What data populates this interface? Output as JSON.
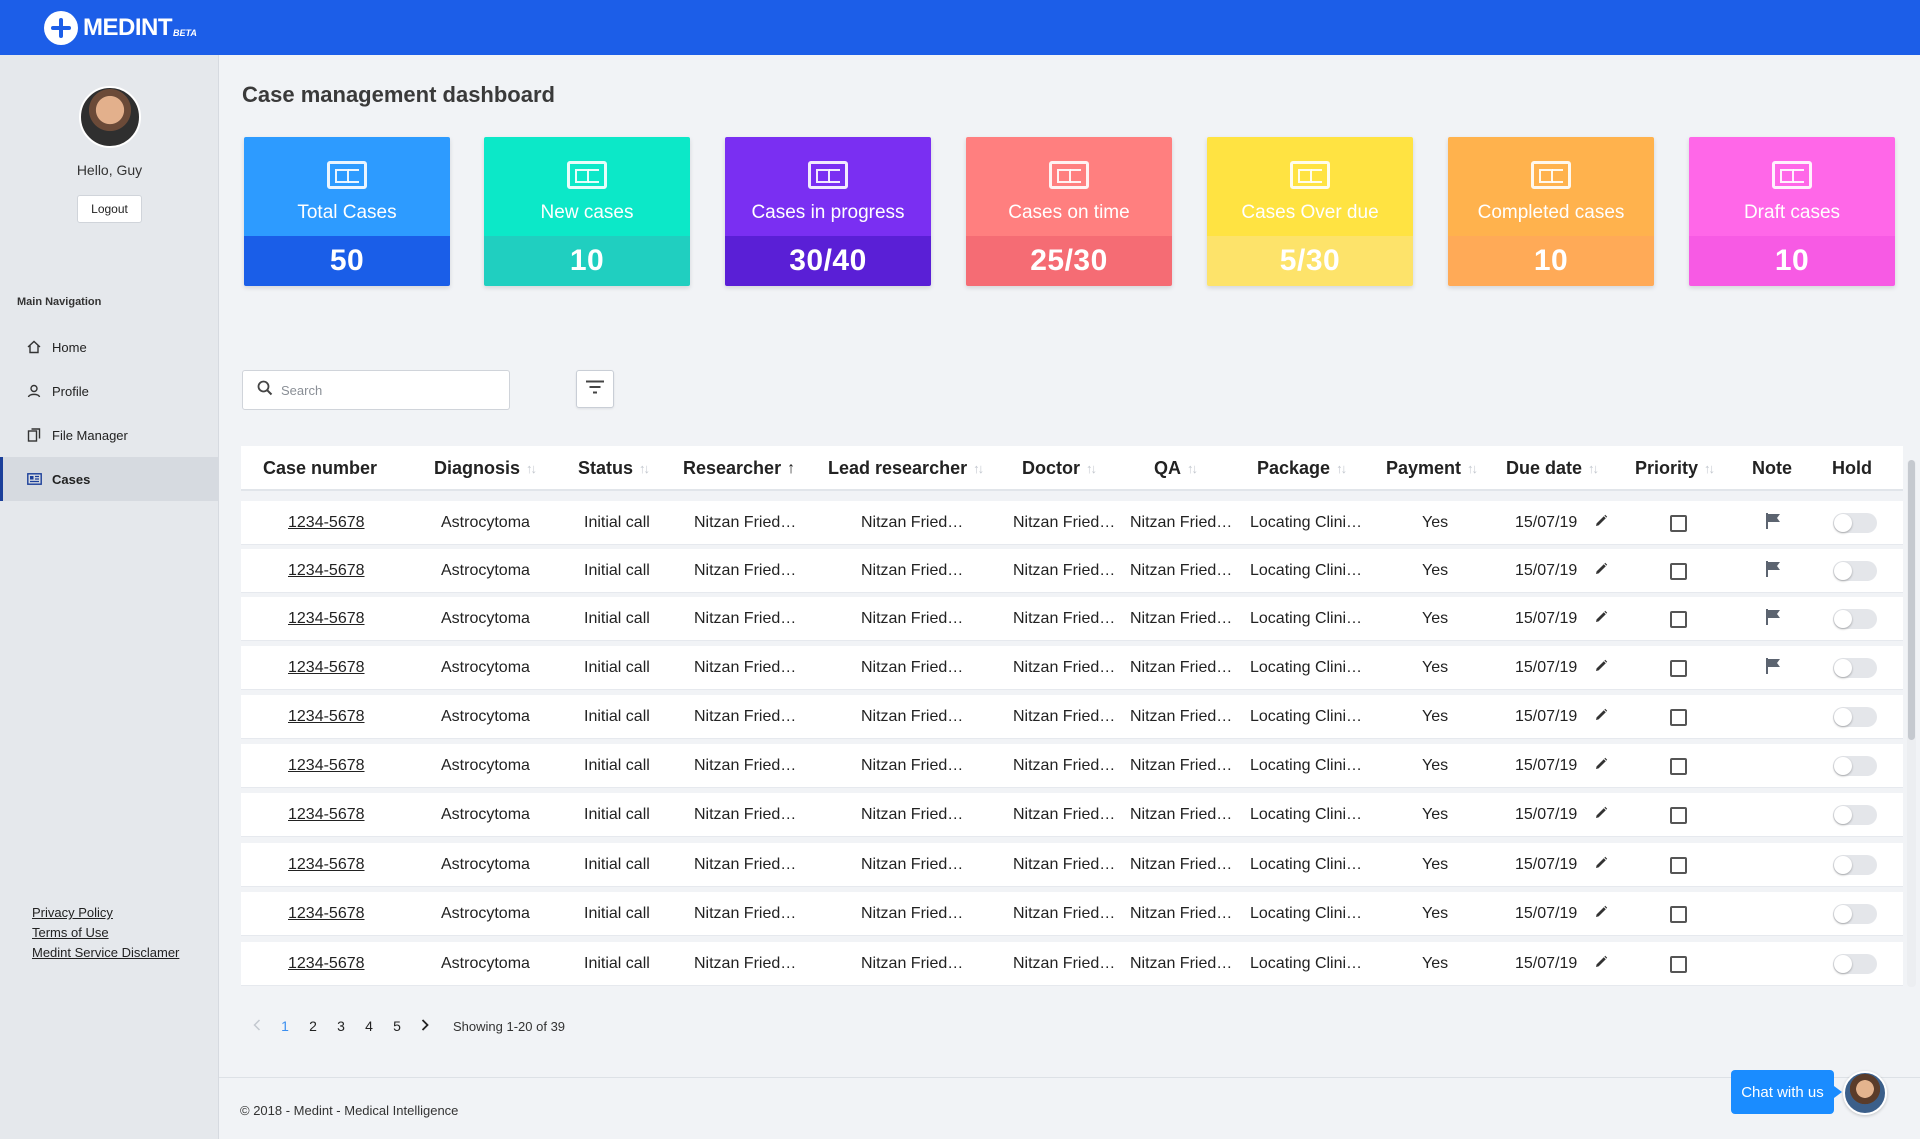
{
  "app": {
    "logo_text": "MEDINT",
    "logo_badge": "BETA"
  },
  "sidebar": {
    "greeting": "Hello, Guy",
    "logout_label": "Logout",
    "nav_title": "Main Navigation",
    "items": [
      {
        "label": "Home",
        "icon": "home-icon"
      },
      {
        "label": "Profile",
        "icon": "user-icon"
      },
      {
        "label": "File Manager",
        "icon": "files-icon"
      },
      {
        "label": "Cases",
        "icon": "cases-icon",
        "active": true
      }
    ],
    "footer_links": [
      "Privacy Policy",
      "Terms of Use",
      "Medint Service Disclamer"
    ]
  },
  "page": {
    "title": "Case management dashboard"
  },
  "cards": [
    {
      "label": "Total Cases",
      "value": "50",
      "top": "#2d9bff",
      "bottom": "#1a5ee8"
    },
    {
      "label": "New cases",
      "value": "10",
      "top": "#0ce8c8",
      "bottom": "#20cfc0"
    },
    {
      "label": "Cases in progress",
      "value": "30/40",
      "top": "#7a2ff2",
      "bottom": "#5a1fd6"
    },
    {
      "label": "Cases on time",
      "value": "25/30",
      "top": "#ff7f7f",
      "bottom": "#f56c74"
    },
    {
      "label": "Cases Over due",
      "value": "5/30",
      "top": "#ffe342",
      "bottom": "#fde36a"
    },
    {
      "label": "Completed cases",
      "value": "10",
      "top": "#ffb24d",
      "bottom": "#ffaa57"
    },
    {
      "label": "Draft cases",
      "value": "10",
      "top": "#ff67e8",
      "bottom": "#f75ae4"
    }
  ],
  "search": {
    "placeholder": "Search"
  },
  "table": {
    "columns": [
      "Case number",
      "Diagnosis",
      "Status",
      "Researcher",
      "Lead researcher",
      "Doctor",
      "QA",
      "Package",
      "Payment",
      "Due date",
      "Priority",
      "Note",
      "Hold"
    ],
    "rows": [
      {
        "case": "1234-5678",
        "diagnosis": "Astrocytoma",
        "status": "Initial call",
        "researcher": "Nitzan Fried…",
        "lead": "Nitzan Fried…",
        "doctor": "Nitzan Fried…",
        "qa": "Nitzan Fried…",
        "package": "Locating Clini…",
        "payment": "Yes",
        "due": "15/07/19",
        "note": true
      },
      {
        "case": "1234-5678",
        "diagnosis": "Astrocytoma",
        "status": "Initial call",
        "researcher": "Nitzan Fried…",
        "lead": "Nitzan Fried…",
        "doctor": "Nitzan Fried…",
        "qa": "Nitzan Fried…",
        "package": "Locating Clini…",
        "payment": "Yes",
        "due": "15/07/19",
        "note": true
      },
      {
        "case": "1234-5678",
        "diagnosis": "Astrocytoma",
        "status": "Initial call",
        "researcher": "Nitzan Fried…",
        "lead": "Nitzan Fried…",
        "doctor": "Nitzan Fried…",
        "qa": "Nitzan Fried…",
        "package": "Locating Clini…",
        "payment": "Yes",
        "due": "15/07/19",
        "note": true
      },
      {
        "case": "1234-5678",
        "diagnosis": "Astrocytoma",
        "status": "Initial call",
        "researcher": "Nitzan Fried…",
        "lead": "Nitzan Fried…",
        "doctor": "Nitzan Fried…",
        "qa": "Nitzan Fried…",
        "package": "Locating Clini…",
        "payment": "Yes",
        "due": "15/07/19",
        "note": true
      },
      {
        "case": "1234-5678",
        "diagnosis": "Astrocytoma",
        "status": "Initial call",
        "researcher": "Nitzan Fried…",
        "lead": "Nitzan Fried…",
        "doctor": "Nitzan Fried…",
        "qa": "Nitzan Fried…",
        "package": "Locating Clini…",
        "payment": "Yes",
        "due": "15/07/19",
        "note": false
      },
      {
        "case": "1234-5678",
        "diagnosis": "Astrocytoma",
        "status": "Initial call",
        "researcher": "Nitzan Fried…",
        "lead": "Nitzan Fried…",
        "doctor": "Nitzan Fried…",
        "qa": "Nitzan Fried…",
        "package": "Locating Clini…",
        "payment": "Yes",
        "due": "15/07/19",
        "note": false
      },
      {
        "case": "1234-5678",
        "diagnosis": "Astrocytoma",
        "status": "Initial call",
        "researcher": "Nitzan Fried…",
        "lead": "Nitzan Fried…",
        "doctor": "Nitzan Fried…",
        "qa": "Nitzan Fried…",
        "package": "Locating Clini…",
        "payment": "Yes",
        "due": "15/07/19",
        "note": false
      },
      {
        "case": "1234-5678",
        "diagnosis": "Astrocytoma",
        "status": "Initial call",
        "researcher": "Nitzan Fried…",
        "lead": "Nitzan Fried…",
        "doctor": "Nitzan Fried…",
        "qa": "Nitzan Fried…",
        "package": "Locating Clini…",
        "payment": "Yes",
        "due": "15/07/19",
        "note": false
      },
      {
        "case": "1234-5678",
        "diagnosis": "Astrocytoma",
        "status": "Initial call",
        "researcher": "Nitzan Fried…",
        "lead": "Nitzan Fried…",
        "doctor": "Nitzan Fried…",
        "qa": "Nitzan Fried…",
        "package": "Locating Clini…",
        "payment": "Yes",
        "due": "15/07/19",
        "note": false
      },
      {
        "case": "1234-5678",
        "diagnosis": "Astrocytoma",
        "status": "Initial call",
        "researcher": "Nitzan Fried…",
        "lead": "Nitzan Fried…",
        "doctor": "Nitzan Fried…",
        "qa": "Nitzan Fried…",
        "package": "Locating Clini…",
        "payment": "Yes",
        "due": "15/07/19",
        "note": false
      }
    ]
  },
  "pagination": {
    "pages": [
      "1",
      "2",
      "3",
      "4",
      "5"
    ],
    "current": "1",
    "showing": "Showing 1-20 of 39"
  },
  "footer": {
    "copyright": "© 2018 - Medint - Medical Intelligence"
  },
  "chat": {
    "label": "Chat with us"
  }
}
